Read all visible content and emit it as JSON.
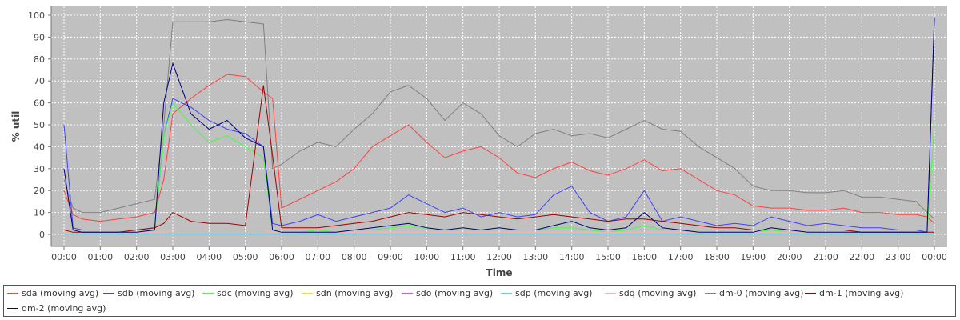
{
  "chart_data": {
    "type": "line",
    "xlabel": "Time",
    "ylabel": "% util",
    "ylim": [
      0,
      100
    ],
    "xlim": [
      0,
      24
    ],
    "yticks": [
      0,
      10,
      20,
      30,
      40,
      50,
      60,
      70,
      80,
      90,
      100
    ],
    "xtick_labels": [
      "00:00",
      "01:00",
      "02:00",
      "03:00",
      "04:00",
      "05:00",
      "06:00",
      "07:00",
      "08:00",
      "09:00",
      "10:00",
      "11:00",
      "12:00",
      "13:00",
      "14:00",
      "15:00",
      "16:00",
      "17:00",
      "18:00",
      "19:00",
      "20:00",
      "21:00",
      "22:00",
      "23:00",
      "00:00"
    ],
    "x": [
      0,
      0.25,
      0.5,
      1,
      1.5,
      2,
      2.5,
      2.75,
      3,
      3.5,
      4,
      4.5,
      5,
      5.5,
      5.75,
      6,
      6.5,
      7,
      7.5,
      8,
      8.5,
      9,
      9.5,
      10,
      10.5,
      11,
      11.5,
      12,
      12.5,
      13,
      13.5,
      14,
      14.5,
      15,
      15.5,
      16,
      16.5,
      17,
      17.5,
      18,
      18.5,
      19,
      19.5,
      20,
      20.5,
      21,
      21.5,
      22,
      22.5,
      23,
      23.5,
      23.8,
      24
    ],
    "grid": true,
    "background": "#c0c0c0",
    "legend_position": "bottom",
    "series": [
      {
        "name": "sda (moving avg)",
        "color": "#ff4040",
        "values": [
          20,
          9,
          7,
          6,
          7,
          8,
          10,
          25,
          55,
          62,
          68,
          73,
          72,
          65,
          62,
          12,
          16,
          20,
          24,
          30,
          40,
          45,
          50,
          42,
          35,
          38,
          40,
          35,
          28,
          26,
          30,
          33,
          29,
          27,
          30,
          34,
          29,
          30,
          25,
          20,
          18,
          13,
          12,
          12,
          11,
          11,
          12,
          10,
          10,
          9,
          9,
          8,
          5
        ]
      },
      {
        "name": "sdb (moving avg)",
        "color": "#4040ff",
        "values": [
          50,
          3,
          2,
          2,
          2,
          2,
          3,
          45,
          62,
          58,
          52,
          48,
          46,
          40,
          5,
          4,
          6,
          9,
          6,
          8,
          10,
          12,
          18,
          14,
          10,
          12,
          8,
          10,
          8,
          9,
          18,
          22,
          10,
          6,
          8,
          20,
          6,
          8,
          6,
          4,
          5,
          4,
          8,
          6,
          4,
          5,
          4,
          3,
          3,
          2,
          2,
          1,
          99
        ]
      },
      {
        "name": "sdc (moving avg)",
        "color": "#40ff40",
        "values": [
          1,
          1,
          1,
          1,
          1,
          1,
          2,
          45,
          60,
          50,
          42,
          45,
          40,
          35,
          2,
          1,
          1,
          2,
          1,
          2,
          2,
          3,
          4,
          3,
          2,
          3,
          2,
          3,
          2,
          2,
          3,
          3,
          2,
          1,
          2,
          4,
          2,
          2,
          1,
          1,
          1,
          1,
          2,
          1,
          1,
          1,
          1,
          1,
          1,
          1,
          1,
          1,
          50
        ]
      },
      {
        "name": "sdn (moving avg)",
        "color": "#e8e800",
        "values": [
          0,
          0,
          0,
          0,
          0,
          0,
          0,
          0,
          0,
          0,
          0,
          0,
          0,
          0,
          0,
          0,
          0,
          0,
          0,
          0,
          0,
          0,
          0,
          0,
          0,
          0,
          0,
          0,
          0,
          0,
          0,
          0,
          0,
          0,
          0,
          0,
          0,
          0,
          0,
          0,
          0,
          0,
          0,
          0,
          0,
          0,
          0,
          0,
          0,
          0,
          0,
          0,
          0
        ]
      },
      {
        "name": "sdo (moving avg)",
        "color": "#ff40ff",
        "values": [
          0,
          0,
          0,
          0,
          0,
          0,
          0,
          0,
          0,
          0,
          0,
          0,
          0,
          0,
          0,
          0,
          0,
          0,
          0,
          0,
          0,
          0,
          0,
          0,
          0,
          0,
          0,
          0,
          0,
          0,
          0,
          0,
          0,
          0,
          0,
          0,
          0,
          0,
          0,
          0,
          0,
          0,
          0,
          0,
          0,
          0,
          0,
          0,
          0,
          0,
          0,
          0,
          0
        ]
      },
      {
        "name": "sdp (moving avg)",
        "color": "#40e0ff",
        "values": [
          0,
          0,
          0,
          0,
          0,
          0,
          0,
          0,
          0,
          0,
          0,
          0,
          0,
          0,
          0,
          0,
          0,
          0,
          0,
          0,
          0,
          0,
          0,
          0,
          0,
          0,
          0,
          0,
          0,
          0,
          0,
          0,
          0,
          0,
          0,
          0,
          0,
          0,
          0,
          0,
          0,
          0,
          0,
          0,
          0,
          0,
          0,
          0,
          0,
          0,
          0,
          0,
          0
        ]
      },
      {
        "name": "sdq (moving avg)",
        "color": "#ffb0b0",
        "values": [
          1,
          1,
          1,
          1,
          1,
          1,
          1,
          1,
          2,
          2,
          2,
          2,
          2,
          2,
          1,
          1,
          1,
          1,
          1,
          1,
          1,
          1,
          1,
          1,
          1,
          1,
          1,
          1,
          1,
          1,
          1,
          1,
          1,
          1,
          1,
          1,
          1,
          1,
          1,
          1,
          1,
          1,
          1,
          1,
          1,
          1,
          1,
          1,
          1,
          1,
          1,
          1,
          1
        ]
      },
      {
        "name": "dm-0 (moving avg)",
        "color": "#808080",
        "values": [
          25,
          12,
          10,
          10,
          12,
          14,
          16,
          50,
          97,
          97,
          97,
          98,
          97,
          96,
          30,
          32,
          38,
          42,
          40,
          48,
          55,
          65,
          68,
          62,
          52,
          60,
          55,
          45,
          40,
          46,
          48,
          45,
          46,
          44,
          48,
          52,
          48,
          47,
          40,
          35,
          30,
          22,
          20,
          20,
          19,
          19,
          20,
          17,
          17,
          16,
          15,
          10,
          7
        ]
      },
      {
        "name": "dm-1 (moving avg)",
        "color": "#a00000",
        "values": [
          2,
          1,
          1,
          1,
          1,
          2,
          3,
          5,
          10,
          6,
          5,
          5,
          4,
          68,
          36,
          3,
          3,
          3,
          4,
          5,
          6,
          8,
          10,
          9,
          8,
          10,
          9,
          8,
          7,
          8,
          9,
          8,
          7,
          6,
          7,
          7,
          6,
          5,
          4,
          3,
          3,
          2,
          2,
          2,
          2,
          2,
          2,
          1,
          1,
          1,
          1,
          1,
          1
        ]
      },
      {
        "name": "dm-2 (moving avg)",
        "color": "#000080",
        "values": [
          30,
          2,
          1,
          1,
          1,
          1,
          2,
          60,
          78,
          55,
          48,
          52,
          44,
          40,
          2,
          1,
          1,
          1,
          1,
          2,
          3,
          4,
          5,
          3,
          2,
          3,
          2,
          3,
          2,
          2,
          4,
          6,
          3,
          2,
          3,
          10,
          3,
          2,
          1,
          1,
          1,
          1,
          3,
          2,
          1,
          1,
          1,
          1,
          1,
          1,
          1,
          1,
          99
        ]
      }
    ]
  }
}
